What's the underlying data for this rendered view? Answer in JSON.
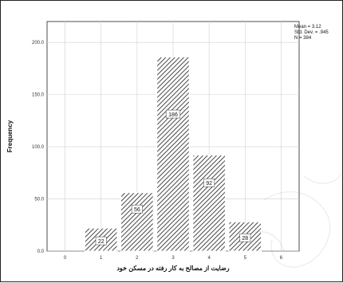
{
  "chart_data": {
    "type": "bar",
    "subtype": "histogram",
    "categories": [
      "1",
      "2",
      "3",
      "4",
      "5"
    ],
    "x": [
      1,
      2,
      3,
      4,
      5
    ],
    "values": [
      22,
      56,
      186,
      92,
      28
    ],
    "data_labels": [
      "22",
      "56",
      "186",
      "92",
      "28"
    ],
    "xlabel": "رضایت از مصالح به کار رفته در مسکن خود",
    "ylabel": "Frequency",
    "xlim": [
      -0.5,
      6.5
    ],
    "ylim": [
      0,
      220
    ],
    "x_ticks": [
      "0",
      "1",
      "2",
      "3",
      "4",
      "5",
      "6"
    ],
    "y_ticks": [
      "0.0",
      "50.0",
      "100.0",
      "150.0",
      "200.0"
    ],
    "y_tick_values": [
      0,
      50,
      100,
      150,
      200
    ],
    "grid": true,
    "bar_fill": "hatched",
    "bar_color": "#333333",
    "stats": [
      "Mean = 3.12",
      "Std. Dev. = .945",
      "N = 384"
    ]
  }
}
